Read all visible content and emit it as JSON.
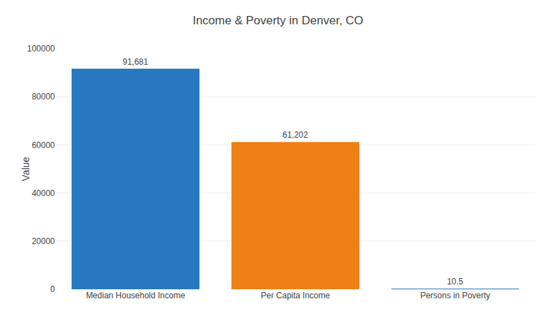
{
  "chart_data": {
    "type": "bar",
    "title": "Income & Poverty in Denver, CO",
    "categories": [
      "Median Household Income",
      "Per Capita Income",
      "Persons in Poverty"
    ],
    "values": [
      91681,
      61202,
      10.5
    ],
    "value_labels": [
      "91,681",
      "61,202",
      "10.5"
    ],
    "data_labels": true,
    "colors": [
      "#2878bf",
      "#f07f16",
      "#2878bf"
    ],
    "ylabel": "Value",
    "ylim": [
      0,
      100000
    ],
    "yticks": [
      0,
      20000,
      40000,
      60000,
      80000,
      100000
    ],
    "grid": true
  }
}
